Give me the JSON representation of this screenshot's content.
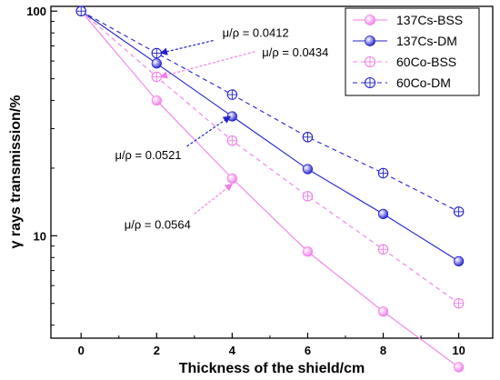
{
  "chart_data": {
    "type": "line",
    "xlabel": "Thickness of the shield/cm",
    "ylabel": "γ rays transmission/%",
    "x_scale": "linear",
    "y_scale": "log",
    "xlim": [
      -0.8,
      10.9
    ],
    "ylim": [
      3.5,
      105
    ],
    "x_ticks": [
      0,
      2,
      4,
      6,
      8,
      10
    ],
    "y_ticks": [
      10,
      100
    ],
    "y_tick_labels": [
      "10",
      "100"
    ],
    "grid": false,
    "legend_position": "top-right",
    "series": [
      {
        "name": "137Cs-BSS",
        "color": "#f07ee8",
        "line_style": "solid",
        "marker": "filled-circle",
        "x": [
          0,
          2,
          4,
          6,
          8,
          10
        ],
        "y": [
          100,
          40,
          18,
          8.5,
          4.6,
          2.6
        ]
      },
      {
        "name": "137Cs-DM",
        "color": "#2222cc",
        "line_style": "solid",
        "marker": "filled-circle",
        "x": [
          0,
          2,
          4,
          6,
          8,
          10
        ],
        "y": [
          100,
          58.5,
          34,
          19.8,
          12.5,
          7.7
        ]
      },
      {
        "name": "60Co-BSS",
        "color": "#f07ee8",
        "line_style": "dashed",
        "marker": "crossed-open-circle",
        "x": [
          0,
          2,
          4,
          6,
          8,
          10
        ],
        "y": [
          100,
          51,
          26.5,
          15,
          8.7,
          5
        ]
      },
      {
        "name": "60Co-DM",
        "color": "#2222cc",
        "line_style": "dashed",
        "marker": "crossed-open-circle",
        "x": [
          0,
          2,
          4,
          6,
          8,
          10
        ],
        "y": [
          100,
          65,
          42.5,
          27.5,
          19,
          12.8
        ]
      }
    ],
    "annotations": [
      {
        "text": "μ/ρ = 0.0412",
        "color": "#2222cc",
        "arrow_from": [
          3.5,
          74
        ],
        "arrow_to": [
          2.1,
          65
        ]
      },
      {
        "text": "μ/ρ = 0.0434",
        "color": "#f07ee8",
        "arrow_from": [
          4.6,
          66
        ],
        "arrow_to": [
          2.1,
          51
        ]
      },
      {
        "text": "μ/ρ = 0.0521",
        "color": "#2222cc",
        "arrow_from": [
          2.8,
          25
        ],
        "arrow_to": [
          3.95,
          34
        ]
      },
      {
        "text": "μ/ρ = 0.0564",
        "color": "#f07ee8",
        "arrow_from": [
          3.0,
          12.5
        ],
        "arrow_to": [
          4.0,
          17
        ]
      }
    ]
  }
}
